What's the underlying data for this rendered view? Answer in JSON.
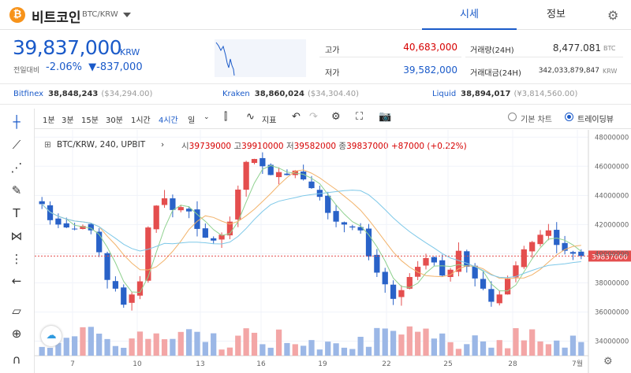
{
  "header": {
    "coin_symbol": "₿",
    "coin_name": "비트코인",
    "pair": "BTC/KRW",
    "tabs": [
      "시세",
      "정보"
    ],
    "settings_icon": "gear-icon"
  },
  "price": {
    "current": "39,837,000",
    "unit": "KRW",
    "change_label": "전일대비",
    "change_pct": "-2.06%",
    "change_abs": "▼-837,000"
  },
  "stats": {
    "high_label": "고가",
    "high": "40,683,000",
    "low_label": "저가",
    "low": "39,582,000",
    "volume_label": "거래량(24H)",
    "volume": "8,477.081",
    "volume_unit": "BTC",
    "amount_label": "거래대금(24H)",
    "amount": "342,033,879,847",
    "amount_unit": "KRW"
  },
  "exchanges": [
    {
      "name": "Bitfinex",
      "price": "38,848,243",
      "usd": "($34,294.00)"
    },
    {
      "name": "Kraken",
      "price": "38,860,024",
      "usd": "($34,304.40)"
    },
    {
      "name": "Liquid",
      "price": "38,894,017",
      "usd": "(¥3,814,560.00)"
    }
  ],
  "toolbar": {
    "intervals": [
      "1분",
      "3분",
      "15분",
      "30분",
      "1시간",
      "4시간",
      "일"
    ],
    "active_interval": "4시간",
    "indicators_label": "지표",
    "basic_chart": "기본 차트",
    "tradingview": "트레이딩뷰"
  },
  "legend": {
    "symbol": "BTC/KRW, 240, UPBIT",
    "o_label": "시",
    "o": "39739000",
    "h_label": "고",
    "h": "39910000",
    "l_label": "저",
    "l": "39582000",
    "c_label": "종",
    "c": "39837000",
    "change": "+87000 (+0.22%)"
  },
  "colors": {
    "up": "#e44e4e",
    "down": "#2962c8",
    "accent": "#1a5ac9"
  },
  "chart_data": {
    "type": "candlestick",
    "y_ticks": [
      "48000000",
      "46000000",
      "44000000",
      "42000000",
      "40000000",
      "38000000",
      "36000000",
      "34000000"
    ],
    "x_ticks": [
      "7",
      "10",
      "13",
      "16",
      "19",
      "22",
      "25",
      "28",
      "7월"
    ],
    "ylim": [
      33000000,
      48500000
    ],
    "last_price_label": "39837000",
    "last_price": 39837000,
    "close_path": [
      43400000,
      42300000,
      42000000,
      41800000,
      41700000,
      41900000,
      41600000,
      40100000,
      38200000,
      37600000,
      36500000,
      37200000,
      38100000,
      41800000,
      43300000,
      43800000,
      43000000,
      43200000,
      42900000,
      41700000,
      41100000,
      40900000,
      41300000,
      42200000,
      44400000,
      46300000,
      46500000,
      46000000,
      45400000,
      45600000,
      45400000,
      45700000,
      45100000,
      44500000,
      43900000,
      42800000,
      42200000,
      42000000,
      41800000,
      41600000,
      39800000,
      38700000,
      37900000,
      36900000,
      37500000,
      38400000,
      39100000,
      39700000,
      39400000,
      38500000,
      38900000,
      40200000,
      39100000,
      38300000,
      37600000,
      36700000,
      37200000,
      38300000,
      39200000,
      40300000,
      40800000,
      41300000,
      41600000,
      40600000,
      40200000,
      40000000,
      39837000
    ]
  }
}
